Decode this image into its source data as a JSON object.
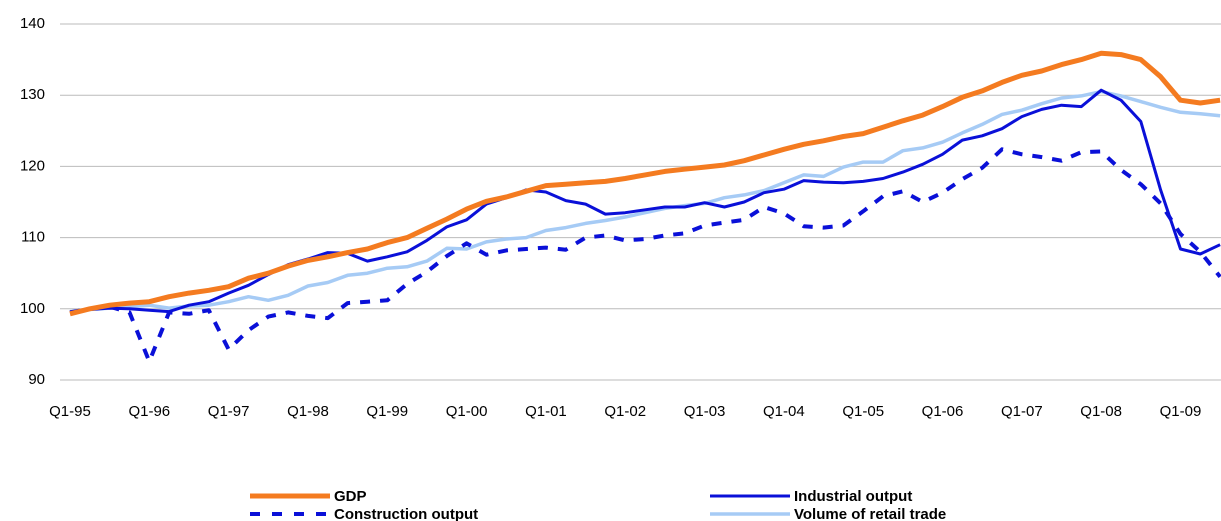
{
  "chart_data": {
    "type": "line",
    "categories": [
      "Q1-95",
      null,
      null,
      null,
      "Q1-96",
      null,
      null,
      null,
      "Q1-97",
      null,
      null,
      null,
      "Q1-98",
      null,
      null,
      null,
      "Q1-99",
      null,
      null,
      null,
      "Q1-00",
      null,
      null,
      null,
      "Q1-01",
      null,
      null,
      null,
      "Q1-02",
      null,
      null,
      null,
      "Q1-03",
      null,
      null,
      null,
      "Q1-04",
      null,
      null,
      null,
      "Q1-05",
      null,
      null,
      null,
      "Q1-06",
      null,
      null,
      null,
      "Q1-07",
      null,
      null,
      null,
      "Q1-08",
      null,
      null,
      null,
      "Q1-09",
      null,
      null
    ],
    "series": [
      {
        "name": "GDP",
        "color": "#f47b20",
        "width": 5,
        "dashed": false,
        "values": [
          99.3,
          100,
          100.5,
          100.8,
          101,
          101.7,
          102.2,
          102.6,
          103.1,
          104.3,
          105,
          106,
          106.8,
          107.3,
          107.9,
          108.4,
          109.3,
          110,
          111.3,
          112.6,
          114,
          115.1,
          115.7,
          116.5,
          117.3,
          117.5,
          117.7,
          117.9,
          118.3,
          118.8,
          119.3,
          119.6,
          119.9,
          120.2,
          120.8,
          121.6,
          122.4,
          123.1,
          123.6,
          124.2,
          124.6,
          125.5,
          126.4,
          127.2,
          128.4,
          129.7,
          130.6,
          131.8,
          132.8,
          133.4,
          134.3,
          135,
          135.9,
          135.7,
          135,
          132.6,
          129.3,
          128.9,
          129.3
        ]
      },
      {
        "name": "Industrial output",
        "color": "#0a10d8",
        "width": 3,
        "dashed": false,
        "values": [
          99.5,
          99.9,
          100.1,
          100,
          99.8,
          99.6,
          100.5,
          101,
          102.2,
          103.3,
          104.8,
          106.2,
          107,
          107.9,
          107.8,
          106.7,
          107.3,
          108,
          109.6,
          111.5,
          112.5,
          114.7,
          115.6,
          116.7,
          116.4,
          115.2,
          114.7,
          113.3,
          113.5,
          113.9,
          114.3,
          114.3,
          114.9,
          114.3,
          115,
          116.3,
          116.8,
          118,
          117.8,
          117.7,
          117.9,
          118.3,
          119.2,
          120.3,
          121.7,
          123.7,
          124.3,
          125.3,
          127,
          128,
          128.6,
          128.4,
          130.7,
          129.3,
          126.3,
          116.7,
          108.4,
          107.7,
          109
        ]
      },
      {
        "name": "Construction output",
        "color": "#0a10d8",
        "width": 4,
        "dashed": true,
        "values": [
          99.5,
          100,
          100.3,
          99.5,
          92.6,
          99.5,
          99.3,
          99.8,
          94.3,
          97,
          98.9,
          99.5,
          99,
          98.7,
          100.8,
          101,
          101.2,
          103.5,
          105.2,
          107.4,
          109.2,
          107.6,
          108.2,
          108.4,
          108.6,
          108.3,
          110,
          110.3,
          109.6,
          109.8,
          110.3,
          110.6,
          111.7,
          112.1,
          112.5,
          114.3,
          113.4,
          111.6,
          111.4,
          111.7,
          113.7,
          115.8,
          116.5,
          115,
          116.3,
          118.2,
          119.8,
          122.4,
          121.7,
          121.3,
          120.8,
          122,
          122.1,
          119.5,
          117.5,
          114.8,
          110.5,
          108,
          104.5
        ]
      },
      {
        "name": "Volume of retail trade",
        "color": "#a6cbf5",
        "width": 3.5,
        "dashed": false,
        "values": [
          99.6,
          99.9,
          100.1,
          100.3,
          100.5,
          100.1,
          100.4,
          100.5,
          101,
          101.7,
          101.2,
          101.9,
          103.2,
          103.7,
          104.7,
          105,
          105.7,
          105.9,
          106.7,
          108.5,
          108.4,
          109.4,
          109.8,
          110,
          111,
          111.4,
          112,
          112.4,
          112.9,
          113.5,
          114.1,
          114.5,
          114.8,
          115.6,
          116,
          116.6,
          117.7,
          118.8,
          118.6,
          119.9,
          120.6,
          120.6,
          122.2,
          122.6,
          123.4,
          124.7,
          125.9,
          127.3,
          127.9,
          128.8,
          129.6,
          129.9,
          130.5,
          129.9,
          129.1,
          128.3,
          127.6,
          127.4,
          127.1
        ]
      }
    ],
    "ylim": [
      90,
      140
    ],
    "yticks": [
      90,
      100,
      110,
      120,
      130,
      140
    ],
    "grid": true
  }
}
